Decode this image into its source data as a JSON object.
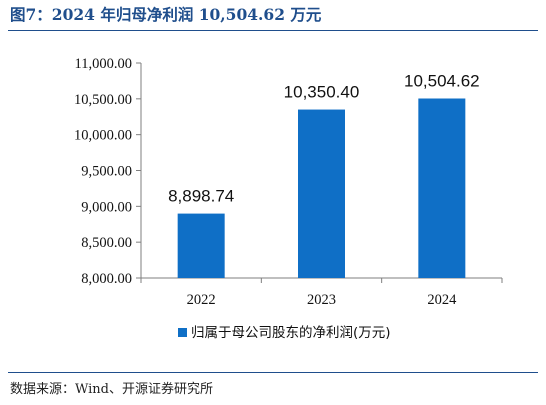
{
  "title": "图7：2024 年归母净利润 10,504.62 万元",
  "source": "数据来源：Wind、开源证券研究所",
  "colors": {
    "bar": "#0f6fc6",
    "title": "#1f4e8c"
  },
  "chart_data": {
    "type": "bar",
    "title": "",
    "xlabel": "",
    "ylabel": "",
    "categories": [
      "2022",
      "2023",
      "2024"
    ],
    "series": [
      {
        "name": "归属于母公司股东的净利润(万元)",
        "values": [
          8898.74,
          10350.4,
          10504.62
        ],
        "labels": [
          "8,898.74",
          "10,350.40",
          "10,504.62"
        ]
      }
    ],
    "ylim": [
      8000,
      11000
    ],
    "yticks": [
      8000,
      8500,
      9000,
      9500,
      10000,
      10500,
      11000
    ],
    "ytick_labels": [
      "8,000.00",
      "8,500.00",
      "9,000.00",
      "9,500.00",
      "10,000.00",
      "10,500.00",
      "11,000.00"
    ],
    "grid": false,
    "legend_position": "bottom"
  }
}
